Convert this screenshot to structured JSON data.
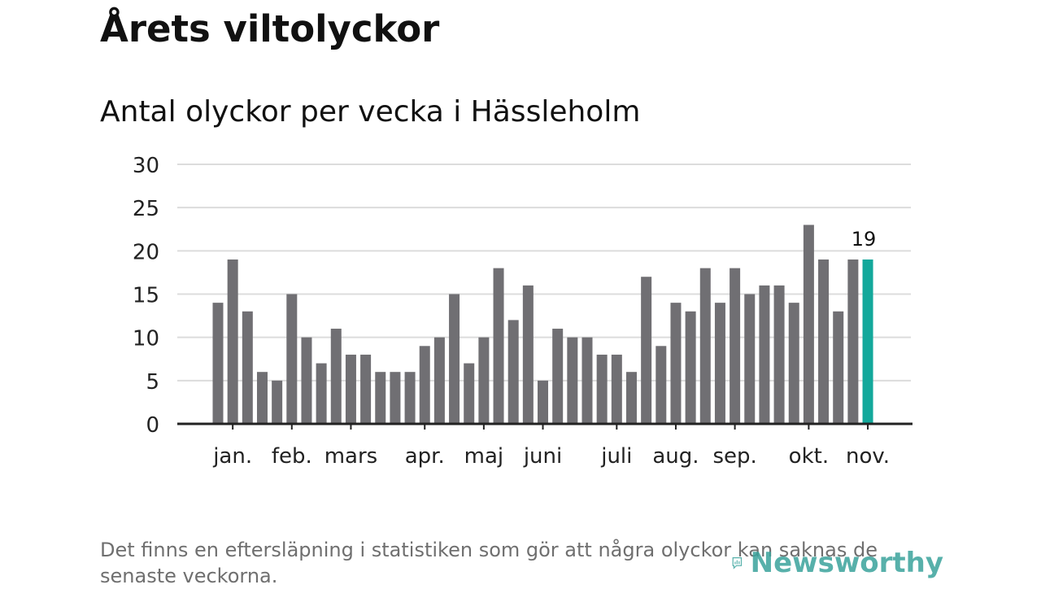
{
  "header": {
    "title": "Årets viltolyckor",
    "subtitle": "Antal olyckor per vecka i Hässleholm"
  },
  "chart_data": {
    "type": "bar",
    "title": "Årets viltolyckor",
    "subtitle": "Antal olyckor per vecka i Hässleholm",
    "xlabel": "",
    "ylabel": "",
    "ylim": [
      0,
      30
    ],
    "yticks": [
      0,
      5,
      10,
      15,
      20,
      25,
      30
    ],
    "grid": true,
    "values": [
      14,
      19,
      13,
      6,
      5,
      15,
      10,
      7,
      11,
      8,
      8,
      6,
      6,
      6,
      9,
      10,
      15,
      7,
      10,
      18,
      12,
      16,
      5,
      11,
      10,
      10,
      8,
      8,
      6,
      17,
      9,
      14,
      13,
      18,
      14,
      18,
      15,
      16,
      16,
      14,
      23,
      19,
      13,
      19,
      19
    ],
    "highlight_index": 44,
    "highlight_label": "19",
    "months": [
      {
        "label": "jan.",
        "tick_week": 1
      },
      {
        "label": "feb.",
        "tick_week": 5
      },
      {
        "label": "mars",
        "tick_week": 9
      },
      {
        "label": "apr.",
        "tick_week": 14
      },
      {
        "label": "maj",
        "tick_week": 18
      },
      {
        "label": "juni",
        "tick_week": 22
      },
      {
        "label": "juli",
        "tick_week": 27
      },
      {
        "label": "aug.",
        "tick_week": 31
      },
      {
        "label": "sep.",
        "tick_week": 35
      },
      {
        "label": "okt.",
        "tick_week": 40
      },
      {
        "label": "nov.",
        "tick_week": 44
      }
    ],
    "colors": {
      "bar": "#706f73",
      "highlight": "#13a89b",
      "grid": "#dcdcdc",
      "axis": "#222222"
    }
  },
  "footer": {
    "note": "Det finns en eftersläpning i statistiken som gör att några olyckor kan saknas de senaste veckorna.",
    "brand": "Newsworthy",
    "brand_color": "#3aa39c"
  }
}
